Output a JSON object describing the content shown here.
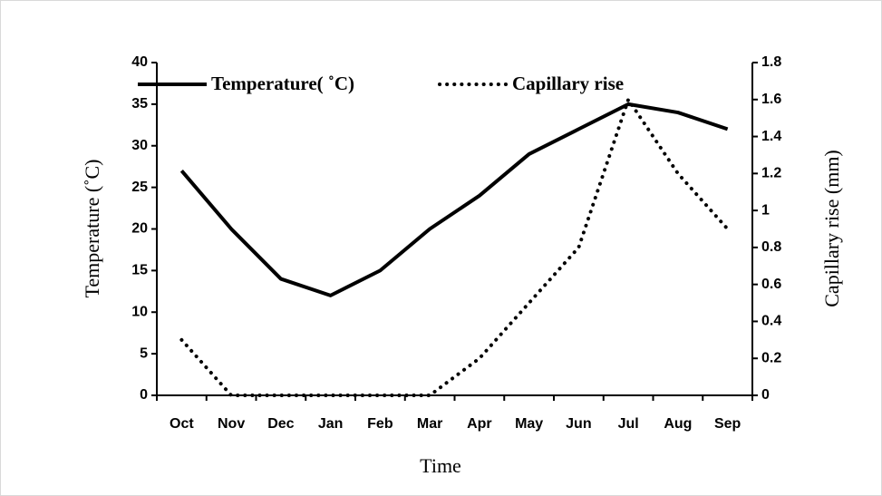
{
  "chart_data": {
    "type": "line",
    "categories": [
      "Oct",
      "Nov",
      "Dec",
      "Jan",
      "Feb",
      "Mar",
      "Apr",
      "May",
      "Jun",
      "Jul",
      "Aug",
      "Sep"
    ],
    "series": [
      {
        "name": "Temperature( ˚C)",
        "color": "#000000",
        "style": "solid",
        "values": [
          27,
          20,
          14,
          12,
          15,
          20,
          24,
          29,
          32,
          35,
          34,
          32
        ]
      },
      {
        "name": "Capillary rise",
        "color": "#000000",
        "style": "dotted",
        "axis": "y2",
        "values": [
          0.3,
          0,
          0,
          0,
          0,
          0,
          0.2,
          0.5,
          0.8,
          1.6,
          1.2,
          0.9
        ]
      }
    ],
    "x_label": "Time",
    "y_label": "Temperature (˚C)",
    "y2_label": "Capillary rise (mm)",
    "ylim": [
      0,
      40
    ],
    "yticks": [
      0,
      5,
      10,
      15,
      20,
      25,
      30,
      35,
      40
    ],
    "y2lim": [
      0,
      1.8
    ],
    "y2ticks": [
      0,
      0.2,
      0.4,
      0.6,
      0.8,
      1,
      1.2,
      1.4,
      1.6,
      1.8
    ],
    "legend": "top"
  }
}
